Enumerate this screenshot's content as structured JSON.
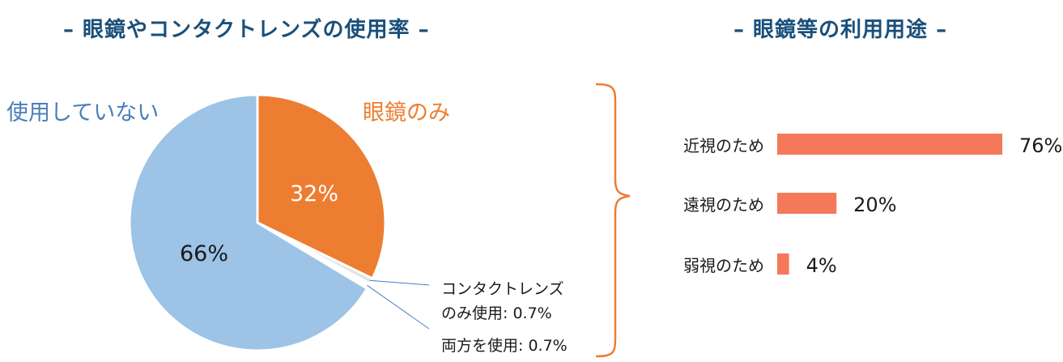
{
  "titles": {
    "left": "– 眼鏡やコンタクトレンズの使用率 –",
    "right": "– 眼鏡等の利用用途 –"
  },
  "colors": {
    "title": "#1a4f7a",
    "glasses_only": "#ed7d31",
    "not_using": "#9dc3e6",
    "contact_only": "#e2e2e2",
    "both": "#ffffff",
    "bar": "#f4795a",
    "not_using_label": "#4a7ebb",
    "bracket": "#ed7d31"
  },
  "chart_data": [
    {
      "type": "pie",
      "slices": [
        {
          "label": "眼鏡のみ",
          "value": 32,
          "value_label": "32%"
        },
        {
          "label": "コンタクトレンズ のみ使用: 0.7%",
          "label_lines": [
            "コンタクトレンズ",
            "のみ使用: 0.7%"
          ],
          "value": 0.7
        },
        {
          "label": "両方を使用: 0.7%",
          "value": 0.7
        },
        {
          "label": "使用していない",
          "value": 66,
          "value_label": "66%"
        }
      ]
    },
    {
      "type": "bar",
      "orientation": "horizontal",
      "categories": [
        "近視のため",
        "遠視のため",
        "弱視のため"
      ],
      "values": [
        76,
        20,
        4
      ],
      "value_labels": [
        "76%",
        "20%",
        "4%"
      ]
    }
  ]
}
